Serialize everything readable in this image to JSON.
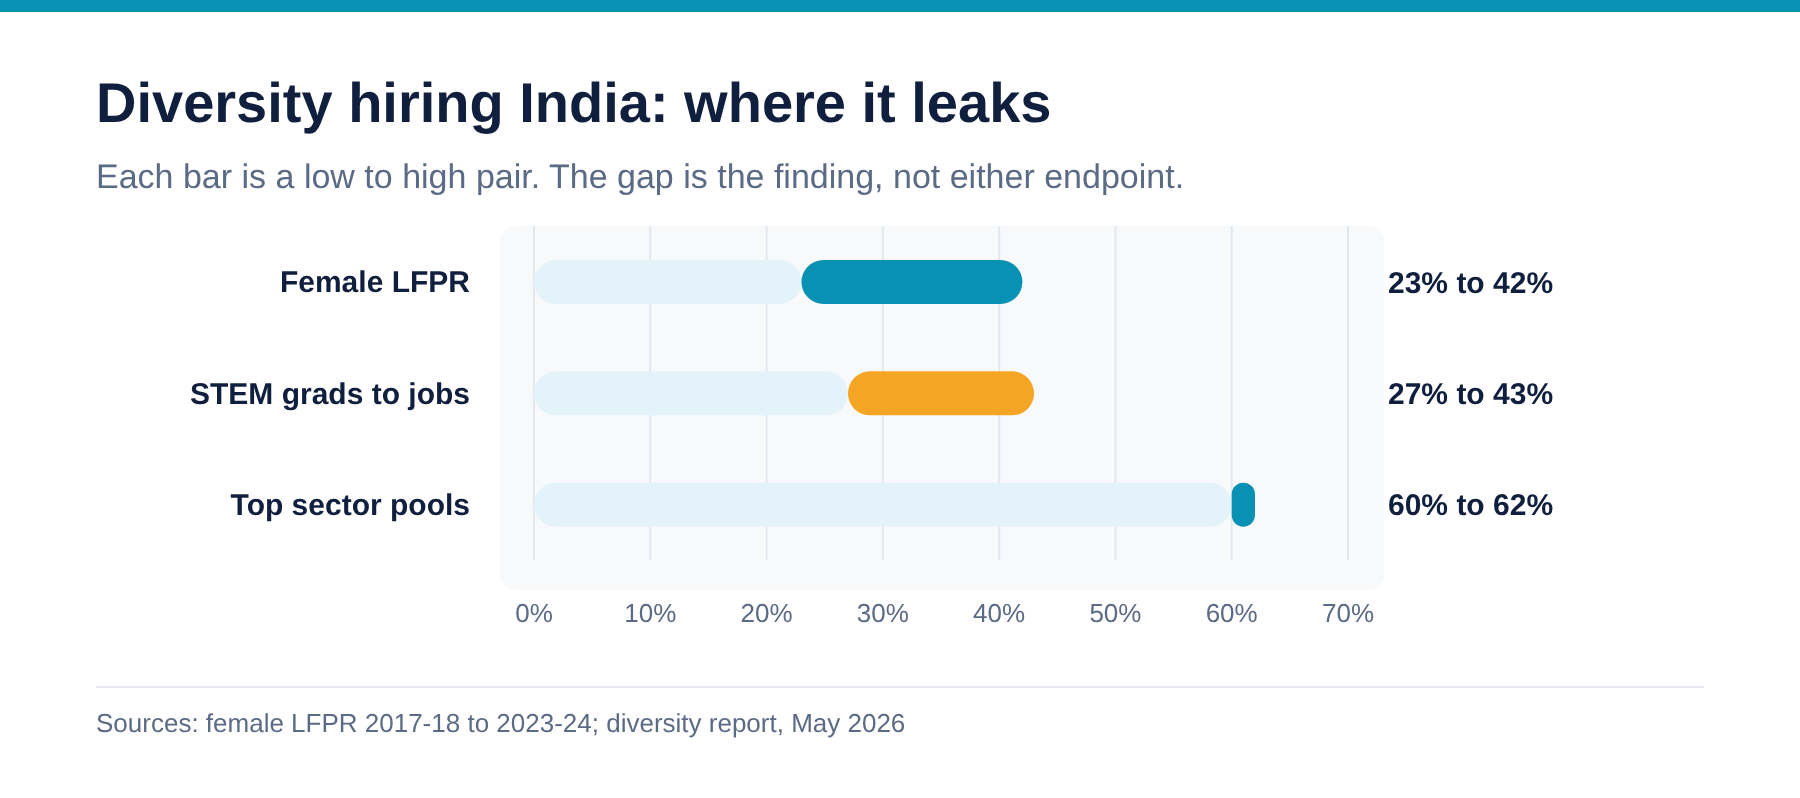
{
  "chart_data": {
    "type": "bar",
    "orientation": "horizontal",
    "stacked": true,
    "title": "Diversity hiring India: where it leaks",
    "subtitle": "Each bar is a low to high pair. The gap is the finding, not either endpoint.",
    "annotations": [
      "Sources: female LFPR 2017-18 to 2023-24; diversity report, May 2026",
      "23% to 42%",
      "27% to 43%",
      "60% to 62%"
    ],
    "categories": [
      "Female LFPR",
      "STEM grads to jobs",
      "Top sector pools"
    ],
    "series": [
      {
        "color": "#e4f3f9",
        "values": [
          23,
          27,
          60
        ]
      },
      {
        "colors": [
          "#0891b2",
          "#f5a524",
          "#0891b2"
        ],
        "values": [
          19,
          16,
          2
        ]
      }
    ],
    "xlim": [
      0,
      70
    ],
    "xticks": [
      {
        "value": 0,
        "label": "0%"
      },
      {
        "value": 10,
        "label": "10%"
      },
      {
        "value": 20,
        "label": "20%"
      },
      {
        "value": 30,
        "label": "30%"
      },
      {
        "value": 40,
        "label": "40%"
      },
      {
        "value": 50,
        "label": "50%"
      },
      {
        "value": 60,
        "label": "60%"
      },
      {
        "value": 70,
        "label": "70%"
      }
    ],
    "grid": "x"
  }
}
